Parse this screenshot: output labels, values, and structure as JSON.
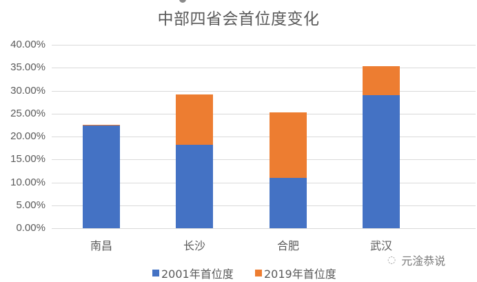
{
  "chart_data": {
    "type": "bar",
    "stacked": true,
    "title": "中部四省会首位度变化",
    "categories": [
      "南昌",
      "长沙",
      "合肥",
      "武汉"
    ],
    "series": [
      {
        "name": "2001年首位度",
        "color": "#4472C4",
        "values": [
          22.4,
          18.2,
          11.0,
          29.0
        ]
      },
      {
        "name": "2019年首位度",
        "color": "#ED7D31",
        "values": [
          0.2,
          11.0,
          14.3,
          6.3
        ]
      }
    ],
    "stack_totals": [
      22.6,
      29.2,
      25.3,
      35.3
    ],
    "xlabel": "",
    "ylabel": "",
    "ylim": [
      0,
      40
    ],
    "yticks": [
      "0.00%",
      "5.00%",
      "10.00%",
      "15.00%",
      "20.00%",
      "25.00%",
      "30.00%",
      "35.00%",
      "40.00%"
    ],
    "grid": true,
    "legend_position": "bottom"
  },
  "watermark": {
    "icon": "wechat-icon",
    "glyph": "◌",
    "text": "元淦恭说"
  }
}
